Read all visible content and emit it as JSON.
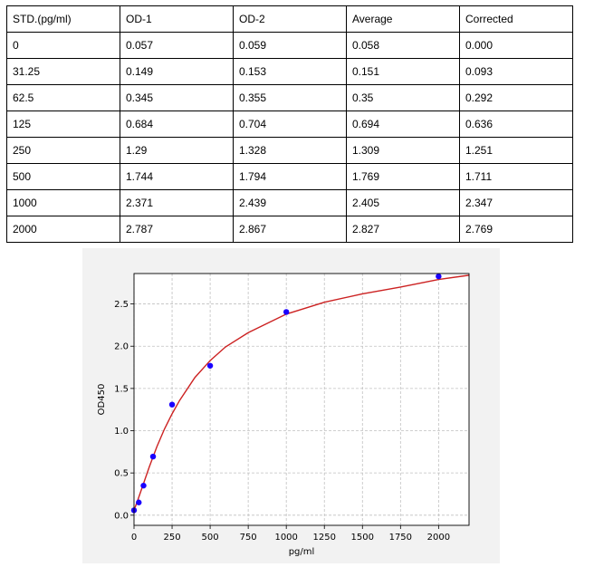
{
  "table": {
    "headers": [
      "STD.(pg/ml)",
      "OD-1",
      "OD-2",
      "Average",
      "Corrected"
    ],
    "rows": [
      [
        "0",
        "0.057",
        "0.059",
        "0.058",
        "0.000"
      ],
      [
        "31.25",
        "0.149",
        "0.153",
        "0.151",
        "0.093"
      ],
      [
        "62.5",
        "0.345",
        "0.355",
        "0.35",
        "0.292"
      ],
      [
        "125",
        "0.684",
        "0.704",
        "0.694",
        "0.636"
      ],
      [
        "250",
        "1.29",
        "1.328",
        "1.309",
        "1.251"
      ],
      [
        "500",
        "1.744",
        "1.794",
        "1.769",
        "1.711"
      ],
      [
        "1000",
        "2.371",
        "2.439",
        "2.405",
        "2.347"
      ],
      [
        "2000",
        "2.787",
        "2.867",
        "2.827",
        "2.769"
      ]
    ]
  },
  "chart_data": {
    "type": "scatter",
    "title": "",
    "xlabel": "pg/ml",
    "ylabel": "OD450",
    "xlim": [
      0,
      2200
    ],
    "ylim": [
      -0.12,
      2.86
    ],
    "grid": true,
    "xticks": [
      0,
      250,
      500,
      750,
      1000,
      1250,
      1500,
      1750,
      2000
    ],
    "yticks": [
      0.0,
      0.5,
      1.0,
      1.5,
      2.0,
      2.5
    ],
    "xtick_labels": [
      "0",
      "250",
      "500",
      "750",
      "1000",
      "1250",
      "1500",
      "1750",
      "2000"
    ],
    "ytick_labels": [
      "0.0",
      "0.5",
      "1.0",
      "1.5",
      "2.0",
      "2.5"
    ],
    "points": {
      "x": [
        0,
        31.25,
        62.5,
        125,
        250,
        500,
        1000,
        2000
      ],
      "y": [
        0.058,
        0.151,
        0.35,
        0.694,
        1.309,
        1.769,
        2.405,
        2.827
      ]
    },
    "fit_curve": {
      "x": [
        0,
        25,
        50,
        100,
        150,
        200,
        250,
        300,
        400,
        500,
        600,
        750,
        1000,
        1250,
        1500,
        1750,
        2000,
        2200
      ],
      "y": [
        0.058,
        0.18,
        0.31,
        0.57,
        0.81,
        1.02,
        1.2,
        1.36,
        1.63,
        1.83,
        1.99,
        2.16,
        2.38,
        2.52,
        2.62,
        2.7,
        2.79,
        2.84
      ]
    },
    "colors": {
      "point": "#1a00ff",
      "curve": "#cc2222",
      "grid": "#c0c0c0",
      "plot_bg": "#ffffff",
      "figure_bg": "#f2f2f2"
    }
  }
}
